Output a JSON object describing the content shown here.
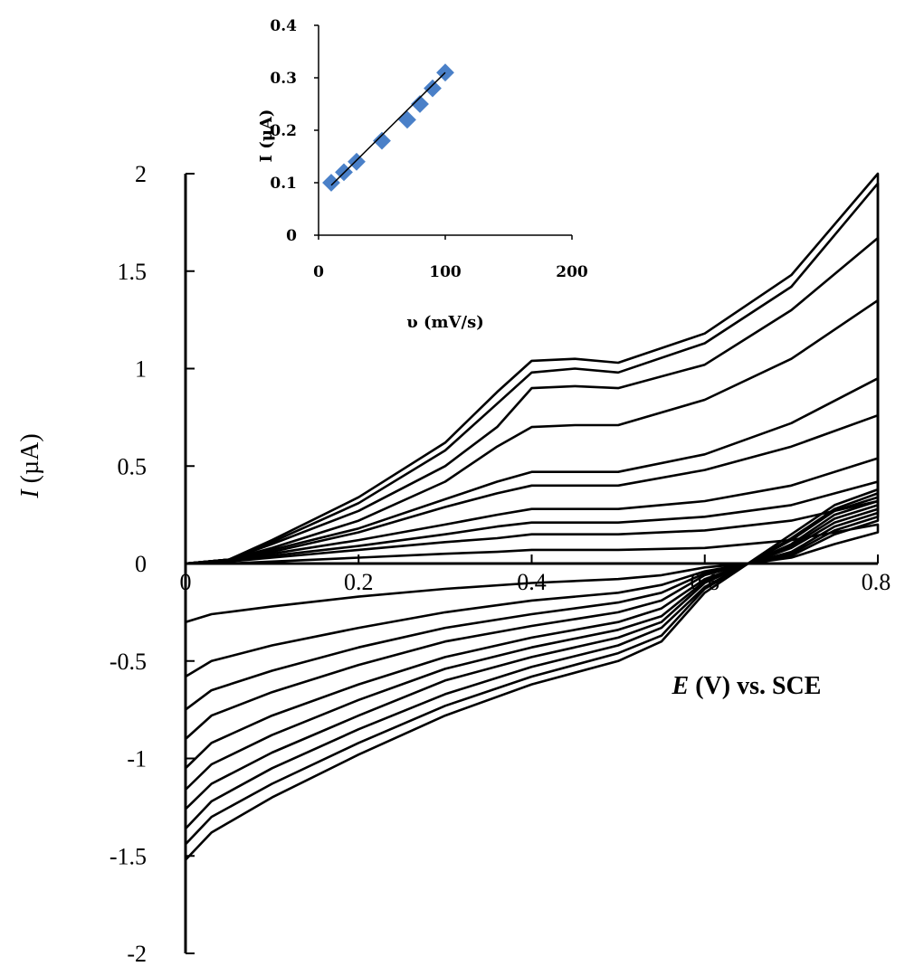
{
  "chart_data": [
    {
      "type": "line",
      "title": "",
      "xlabel_symbol": "E",
      "xlabel_rest": " (V) vs. SCE",
      "ylabel_symbol": "I",
      "ylabel_rest": " (µA)",
      "xlim": [
        0,
        0.8
      ],
      "ylim": [
        -2,
        2
      ],
      "x_ticks": [
        "0",
        "0.2",
        "0.4",
        "0.6",
        "0.8"
      ],
      "y_ticks": [
        "2",
        "1.5",
        "1",
        "0.5",
        "0",
        "-0.5",
        "-1",
        "-1.5",
        "-2"
      ],
      "grid": false,
      "legend": "none",
      "line_color": "#000000",
      "series": [
        {
          "forward": [
            [
              0.0,
              0.0
            ],
            [
              0.05,
              0.02
            ],
            [
              0.1,
              0.12
            ],
            [
              0.2,
              0.34
            ],
            [
              0.3,
              0.62
            ],
            [
              0.36,
              0.88
            ],
            [
              0.4,
              1.04
            ],
            [
              0.45,
              1.05
            ],
            [
              0.5,
              1.03
            ],
            [
              0.6,
              1.18
            ],
            [
              0.7,
              1.48
            ],
            [
              0.8,
              2.0
            ]
          ],
          "reverse": [
            [
              0.8,
              0.38
            ],
            [
              0.75,
              0.3
            ],
            [
              0.7,
              0.15
            ],
            [
              0.65,
              0.0
            ],
            [
              0.6,
              -0.15
            ],
            [
              0.55,
              -0.4
            ],
            [
              0.5,
              -0.5
            ],
            [
              0.4,
              -0.62
            ],
            [
              0.3,
              -0.78
            ],
            [
              0.2,
              -0.98
            ],
            [
              0.1,
              -1.2
            ],
            [
              0.03,
              -1.38
            ],
            [
              0.0,
              -1.52
            ]
          ]
        },
        {
          "forward": [
            [
              0.0,
              0.0
            ],
            [
              0.05,
              0.02
            ],
            [
              0.1,
              0.11
            ],
            [
              0.2,
              0.31
            ],
            [
              0.3,
              0.58
            ],
            [
              0.36,
              0.82
            ],
            [
              0.4,
              0.98
            ],
            [
              0.45,
              1.0
            ],
            [
              0.5,
              0.98
            ],
            [
              0.6,
              1.13
            ],
            [
              0.7,
              1.42
            ],
            [
              0.8,
              1.95
            ]
          ],
          "reverse": [
            [
              0.8,
              0.36
            ],
            [
              0.75,
              0.28
            ],
            [
              0.7,
              0.13
            ],
            [
              0.65,
              0.0
            ],
            [
              0.6,
              -0.13
            ],
            [
              0.55,
              -0.37
            ],
            [
              0.5,
              -0.46
            ],
            [
              0.4,
              -0.58
            ],
            [
              0.3,
              -0.73
            ],
            [
              0.2,
              -0.92
            ],
            [
              0.1,
              -1.13
            ],
            [
              0.03,
              -1.3
            ],
            [
              0.0,
              -1.44
            ]
          ]
        },
        {
          "forward": [
            [
              0.0,
              0.0
            ],
            [
              0.05,
              0.02
            ],
            [
              0.1,
              0.1
            ],
            [
              0.2,
              0.27
            ],
            [
              0.3,
              0.5
            ],
            [
              0.36,
              0.7
            ],
            [
              0.4,
              0.9
            ],
            [
              0.45,
              0.91
            ],
            [
              0.5,
              0.9
            ],
            [
              0.6,
              1.02
            ],
            [
              0.7,
              1.3
            ],
            [
              0.8,
              1.67
            ]
          ],
          "reverse": [
            [
              0.8,
              0.34
            ],
            [
              0.75,
              0.27
            ],
            [
              0.7,
              0.12
            ],
            [
              0.65,
              0.0
            ],
            [
              0.6,
              -0.12
            ],
            [
              0.55,
              -0.33
            ],
            [
              0.5,
              -0.42
            ],
            [
              0.4,
              -0.53
            ],
            [
              0.3,
              -0.67
            ],
            [
              0.2,
              -0.85
            ],
            [
              0.1,
              -1.05
            ],
            [
              0.03,
              -1.22
            ],
            [
              0.0,
              -1.36
            ]
          ]
        },
        {
          "forward": [
            [
              0.0,
              0.0
            ],
            [
              0.05,
              0.02
            ],
            [
              0.1,
              0.08
            ],
            [
              0.2,
              0.22
            ],
            [
              0.3,
              0.42
            ],
            [
              0.36,
              0.6
            ],
            [
              0.4,
              0.7
            ],
            [
              0.45,
              0.71
            ],
            [
              0.5,
              0.71
            ],
            [
              0.6,
              0.84
            ],
            [
              0.7,
              1.05
            ],
            [
              0.8,
              1.35
            ]
          ],
          "reverse": [
            [
              0.8,
              0.32
            ],
            [
              0.75,
              0.25
            ],
            [
              0.7,
              0.1
            ],
            [
              0.65,
              0.0
            ],
            [
              0.6,
              -0.1
            ],
            [
              0.55,
              -0.3
            ],
            [
              0.5,
              -0.38
            ],
            [
              0.4,
              -0.48
            ],
            [
              0.3,
              -0.6
            ],
            [
              0.2,
              -0.78
            ],
            [
              0.1,
              -0.97
            ],
            [
              0.03,
              -1.13
            ],
            [
              0.0,
              -1.26
            ]
          ]
        },
        {
          "forward": [
            [
              0.0,
              0.0
            ],
            [
              0.05,
              0.02
            ],
            [
              0.1,
              0.07
            ],
            [
              0.2,
              0.18
            ],
            [
              0.3,
              0.33
            ],
            [
              0.36,
              0.42
            ],
            [
              0.4,
              0.47
            ],
            [
              0.45,
              0.47
            ],
            [
              0.5,
              0.47
            ],
            [
              0.6,
              0.56
            ],
            [
              0.7,
              0.72
            ],
            [
              0.8,
              0.95
            ]
          ],
          "reverse": [
            [
              0.8,
              0.3
            ],
            [
              0.75,
              0.23
            ],
            [
              0.7,
              0.09
            ],
            [
              0.65,
              0.0
            ],
            [
              0.6,
              -0.09
            ],
            [
              0.55,
              -0.27
            ],
            [
              0.5,
              -0.34
            ],
            [
              0.4,
              -0.43
            ],
            [
              0.3,
              -0.54
            ],
            [
              0.2,
              -0.7
            ],
            [
              0.1,
              -0.88
            ],
            [
              0.03,
              -1.03
            ],
            [
              0.0,
              -1.16
            ]
          ]
        },
        {
          "forward": [
            [
              0.0,
              0.0
            ],
            [
              0.05,
              0.02
            ],
            [
              0.1,
              0.06
            ],
            [
              0.2,
              0.16
            ],
            [
              0.3,
              0.29
            ],
            [
              0.36,
              0.36
            ],
            [
              0.4,
              0.4
            ],
            [
              0.45,
              0.4
            ],
            [
              0.5,
              0.4
            ],
            [
              0.6,
              0.48
            ],
            [
              0.7,
              0.6
            ],
            [
              0.8,
              0.76
            ]
          ],
          "reverse": [
            [
              0.8,
              0.28
            ],
            [
              0.75,
              0.21
            ],
            [
              0.7,
              0.08
            ],
            [
              0.65,
              0.0
            ],
            [
              0.6,
              -0.08
            ],
            [
              0.55,
              -0.23
            ],
            [
              0.5,
              -0.3
            ],
            [
              0.4,
              -0.38
            ],
            [
              0.3,
              -0.48
            ],
            [
              0.2,
              -0.62
            ],
            [
              0.1,
              -0.78
            ],
            [
              0.03,
              -0.92
            ],
            [
              0.0,
              -1.05
            ]
          ]
        },
        {
          "forward": [
            [
              0.0,
              0.0
            ],
            [
              0.05,
              0.01
            ],
            [
              0.1,
              0.05
            ],
            [
              0.2,
              0.12
            ],
            [
              0.3,
              0.2
            ],
            [
              0.36,
              0.25
            ],
            [
              0.4,
              0.28
            ],
            [
              0.45,
              0.28
            ],
            [
              0.5,
              0.28
            ],
            [
              0.6,
              0.32
            ],
            [
              0.7,
              0.4
            ],
            [
              0.8,
              0.54
            ]
          ],
          "reverse": [
            [
              0.8,
              0.26
            ],
            [
              0.75,
              0.19
            ],
            [
              0.7,
              0.06
            ],
            [
              0.65,
              0.0
            ],
            [
              0.6,
              -0.06
            ],
            [
              0.55,
              -0.19
            ],
            [
              0.5,
              -0.25
            ],
            [
              0.4,
              -0.32
            ],
            [
              0.3,
              -0.4
            ],
            [
              0.2,
              -0.52
            ],
            [
              0.1,
              -0.66
            ],
            [
              0.03,
              -0.78
            ],
            [
              0.0,
              -0.9
            ]
          ]
        },
        {
          "forward": [
            [
              0.0,
              0.0
            ],
            [
              0.05,
              0.01
            ],
            [
              0.1,
              0.04
            ],
            [
              0.2,
              0.09
            ],
            [
              0.3,
              0.15
            ],
            [
              0.36,
              0.19
            ],
            [
              0.4,
              0.21
            ],
            [
              0.45,
              0.21
            ],
            [
              0.5,
              0.21
            ],
            [
              0.6,
              0.24
            ],
            [
              0.7,
              0.3
            ],
            [
              0.8,
              0.42
            ]
          ],
          "reverse": [
            [
              0.8,
              0.24
            ],
            [
              0.75,
              0.17
            ],
            [
              0.7,
              0.05
            ],
            [
              0.65,
              0.0
            ],
            [
              0.6,
              -0.05
            ],
            [
              0.55,
              -0.15
            ],
            [
              0.5,
              -0.2
            ],
            [
              0.4,
              -0.26
            ],
            [
              0.3,
              -0.33
            ],
            [
              0.2,
              -0.43
            ],
            [
              0.1,
              -0.55
            ],
            [
              0.03,
              -0.65
            ],
            [
              0.0,
              -0.75
            ]
          ]
        },
        {
          "forward": [
            [
              0.0,
              0.0
            ],
            [
              0.05,
              0.01
            ],
            [
              0.1,
              0.03
            ],
            [
              0.2,
              0.07
            ],
            [
              0.3,
              0.11
            ],
            [
              0.36,
              0.13
            ],
            [
              0.4,
              0.15
            ],
            [
              0.45,
              0.15
            ],
            [
              0.5,
              0.15
            ],
            [
              0.6,
              0.17
            ],
            [
              0.7,
              0.22
            ],
            [
              0.8,
              0.32
            ]
          ],
          "reverse": [
            [
              0.8,
              0.22
            ],
            [
              0.75,
              0.15
            ],
            [
              0.7,
              0.04
            ],
            [
              0.65,
              0.0
            ],
            [
              0.6,
              -0.04
            ],
            [
              0.55,
              -0.11
            ],
            [
              0.5,
              -0.15
            ],
            [
              0.4,
              -0.19
            ],
            [
              0.3,
              -0.25
            ],
            [
              0.2,
              -0.33
            ],
            [
              0.1,
              -0.42
            ],
            [
              0.03,
              -0.5
            ],
            [
              0.0,
              -0.58
            ]
          ]
        },
        {
          "forward": [
            [
              0.0,
              0.0
            ],
            [
              0.05,
              0.0
            ],
            [
              0.1,
              0.01
            ],
            [
              0.2,
              0.03
            ],
            [
              0.3,
              0.05
            ],
            [
              0.36,
              0.06
            ],
            [
              0.4,
              0.07
            ],
            [
              0.45,
              0.07
            ],
            [
              0.5,
              0.07
            ],
            [
              0.6,
              0.08
            ],
            [
              0.7,
              0.12
            ],
            [
              0.8,
              0.2
            ]
          ],
          "reverse": [
            [
              0.8,
              0.16
            ],
            [
              0.75,
              0.1
            ],
            [
              0.7,
              0.03
            ],
            [
              0.65,
              0.0
            ],
            [
              0.6,
              -0.02
            ],
            [
              0.55,
              -0.06
            ],
            [
              0.5,
              -0.08
            ],
            [
              0.4,
              -0.1
            ],
            [
              0.3,
              -0.13
            ],
            [
              0.2,
              -0.17
            ],
            [
              0.1,
              -0.22
            ],
            [
              0.03,
              -0.26
            ],
            [
              0.0,
              -0.3
            ]
          ]
        }
      ]
    },
    {
      "type": "scatter",
      "title": "",
      "xlabel": "υ (mV/s)",
      "ylabel": "I (μA)",
      "xlim": [
        0,
        200
      ],
      "ylim": [
        0,
        0.4
      ],
      "x_ticks": [
        "0",
        "100",
        "200"
      ],
      "y_ticks": [
        "0",
        "0.1",
        "0.2",
        "0.3",
        "0.4"
      ],
      "grid": false,
      "legend": "none",
      "marker_color": "#4a80c8",
      "fit_line_color": "#000000",
      "series": [
        {
          "x": [
            10,
            20,
            30,
            50,
            70,
            80,
            90,
            100
          ],
          "y": [
            0.1,
            0.12,
            0.14,
            0.18,
            0.22,
            0.25,
            0.28,
            0.31
          ]
        }
      ],
      "fit": {
        "x": [
          10,
          100
        ],
        "y": [
          0.095,
          0.31
        ]
      }
    }
  ]
}
